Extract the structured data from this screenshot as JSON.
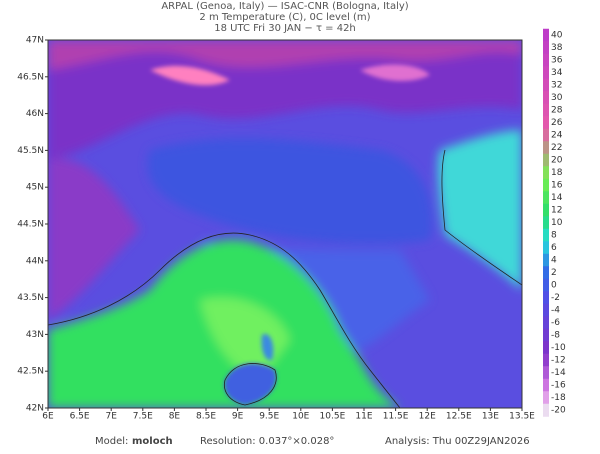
{
  "header": {
    "lines": [
      "ARPAL (Genoa, Italy)  —  ISAC-CNR (Bologna, Italy)",
      "2 m Temperature (C), 0C level (m)",
      "18 UTC Fri 30 JAN  −  τ = 42h"
    ]
  },
  "map": {
    "lat_labels": [
      "47N",
      "46.5N",
      "46N",
      "45.5N",
      "45N",
      "44.5N",
      "44N",
      "43.5N",
      "43N",
      "42.5N",
      "42N"
    ],
    "lon_labels": [
      "6E",
      "6.5E",
      "7E",
      "7.5E",
      "8E",
      "8.5E",
      "9E",
      "9.5E",
      "10E",
      "10.5E",
      "11E",
      "11.5E",
      "12E",
      "12.5E",
      "13E",
      "13.5E"
    ]
  },
  "colorbar": {
    "ticks": [
      40,
      38,
      36,
      34,
      32,
      30,
      28,
      26,
      24,
      22,
      20,
      18,
      16,
      14,
      12,
      10,
      8,
      6,
      4,
      2,
      0,
      -2,
      -4,
      -6,
      -8,
      -10,
      -12,
      -14,
      -16,
      -18,
      -20
    ]
  },
  "footer": {
    "model_label": "Model:",
    "model": "moloch",
    "resolution": "Resolution: 0.037°×0.028°",
    "analysis": "Analysis: Thu 00Z29JAN2026"
  }
}
